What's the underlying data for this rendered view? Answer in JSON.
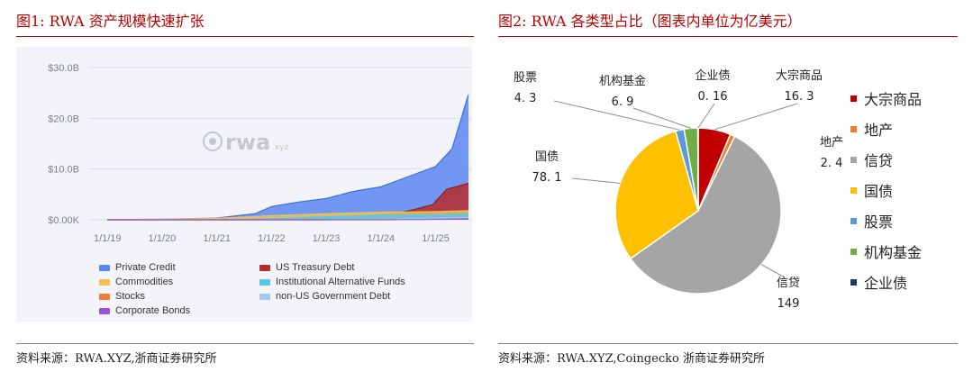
{
  "left": {
    "title": "图1:  RWA 资产规模快速扩张",
    "source": "资料来源：RWA.XYZ,浙商证券研究所",
    "watermark": "rwa",
    "watermark_suffix": ".xyz"
  },
  "right": {
    "title": "图2:  RWA 各类型占比（图表内单位为亿美元）",
    "source": "资料来源：RWA.XYZ,Coingecko  浙商证券研究所"
  },
  "colors": {
    "private_credit": "#5b86f0",
    "us_treasury": "#b52a2a",
    "commodities": "#f2c14e",
    "inst_alt_funds": "#56c8e8",
    "stocks": "#f07a3a",
    "non_us_gov": "#a8c8ea",
    "corporate_bonds": "#9b55d6",
    "pie_commodity": "#c00000",
    "pie_realestate": "#ed7d31",
    "pie_credit": "#a5a5a5",
    "pie_treasury": "#ffc000",
    "pie_stocks": "#5b9bd5",
    "pie_funds": "#70ad47",
    "pie_corp": "#203864"
  },
  "chart_data": [
    {
      "type": "area",
      "title": "",
      "x": [
        "1/1/19",
        "1/1/20",
        "1/1/21",
        "1/1/22",
        "1/1/23",
        "1/1/24",
        "1/1/25"
      ],
      "ylim": [
        0,
        30
      ],
      "yticks": [
        "$0.00K",
        "$10.0B",
        "$20.0B",
        "$30.0B"
      ],
      "grid": true,
      "legend": "bottom",
      "series": [
        {
          "name": "Private Credit",
          "key": "private_credit",
          "points": [
            [
              2019,
              0.05
            ],
            [
              2020,
              0.1
            ],
            [
              2021,
              0.35
            ],
            [
              2021.7,
              1.2
            ],
            [
              2022,
              2.6
            ],
            [
              2022.5,
              3.5
            ],
            [
              2023,
              4.2
            ],
            [
              2023.5,
              5.6
            ],
            [
              2024,
              6.5
            ],
            [
              2024.5,
              8.5
            ],
            [
              2025,
              10.5
            ],
            [
              2025.3,
              14
            ],
            [
              2025.6,
              24.7
            ]
          ]
        },
        {
          "name": "US Treasury Debt",
          "key": "us_treasury",
          "points": [
            [
              2019,
              0
            ],
            [
              2022.9,
              0
            ],
            [
              2023.3,
              0.3
            ],
            [
              2023.8,
              0.6
            ],
            [
              2024,
              0.8
            ],
            [
              2024.3,
              1.3
            ],
            [
              2024.6,
              2
            ],
            [
              2024.95,
              3
            ],
            [
              2025.2,
              6
            ],
            [
              2025.6,
              7.2
            ]
          ]
        },
        {
          "name": "Commodities",
          "key": "commodities",
          "points": [
            [
              2019,
              0
            ],
            [
              2020,
              0.1
            ],
            [
              2020.5,
              0.2
            ],
            [
              2021,
              0.3
            ],
            [
              2022,
              0.8
            ],
            [
              2023,
              1.2
            ],
            [
              2024,
              1.5
            ],
            [
              2025,
              1.6
            ],
            [
              2025.6,
              1.8
            ]
          ]
        },
        {
          "name": "Institutional Alternative Funds",
          "key": "inst_alt_funds",
          "points": [
            [
              2019,
              0
            ],
            [
              2021,
              0
            ],
            [
              2022,
              0.2
            ],
            [
              2023,
              0.6
            ],
            [
              2024,
              0.9
            ],
            [
              2025,
              1
            ],
            [
              2025.6,
              1.2
            ]
          ]
        },
        {
          "name": "Stocks",
          "key": "stocks",
          "points": [
            [
              2019,
              0
            ],
            [
              2023,
              0
            ],
            [
              2024,
              0.1
            ],
            [
              2025,
              0.2
            ],
            [
              2025.6,
              0.4
            ]
          ]
        },
        {
          "name": "non-US Government Debt",
          "key": "non_us_gov",
          "points": [
            [
              2019,
              0
            ],
            [
              2023,
              0
            ],
            [
              2024,
              0.1
            ],
            [
              2025,
              0.3
            ],
            [
              2025.6,
              0.5
            ]
          ]
        },
        {
          "name": "Corporate Bonds",
          "key": "corporate_bonds",
          "points": [
            [
              2019,
              0
            ],
            [
              2024,
              0
            ],
            [
              2025,
              0.1
            ],
            [
              2025.6,
              0.2
            ]
          ]
        }
      ]
    },
    {
      "type": "pie",
      "title": "",
      "unit": "亿美元",
      "legend": "right",
      "slices": [
        {
          "name": "大宗商品",
          "label": "大宗商品",
          "value": 16.3,
          "value_text": "16. 3",
          "key": "pie_commodity"
        },
        {
          "name": "地产",
          "label": "地产",
          "value": 2.4,
          "value_text": "2. 4",
          "key": "pie_realestate"
        },
        {
          "name": "信贷",
          "label": "信贷",
          "value": 149,
          "value_text": "149",
          "key": "pie_credit"
        },
        {
          "name": "国债",
          "label": "国债",
          "value": 78.1,
          "value_text": "78. 1",
          "key": "pie_treasury"
        },
        {
          "name": "股票",
          "label": "股票",
          "value": 4.3,
          "value_text": "4. 3",
          "key": "pie_stocks"
        },
        {
          "name": "机构基金",
          "label": "机构基金",
          "value": 6.9,
          "value_text": "6. 9",
          "key": "pie_funds"
        },
        {
          "name": "企业债",
          "label": "企业债",
          "value": 0.16,
          "value_text": "0. 16",
          "key": "pie_corp"
        }
      ]
    }
  ]
}
